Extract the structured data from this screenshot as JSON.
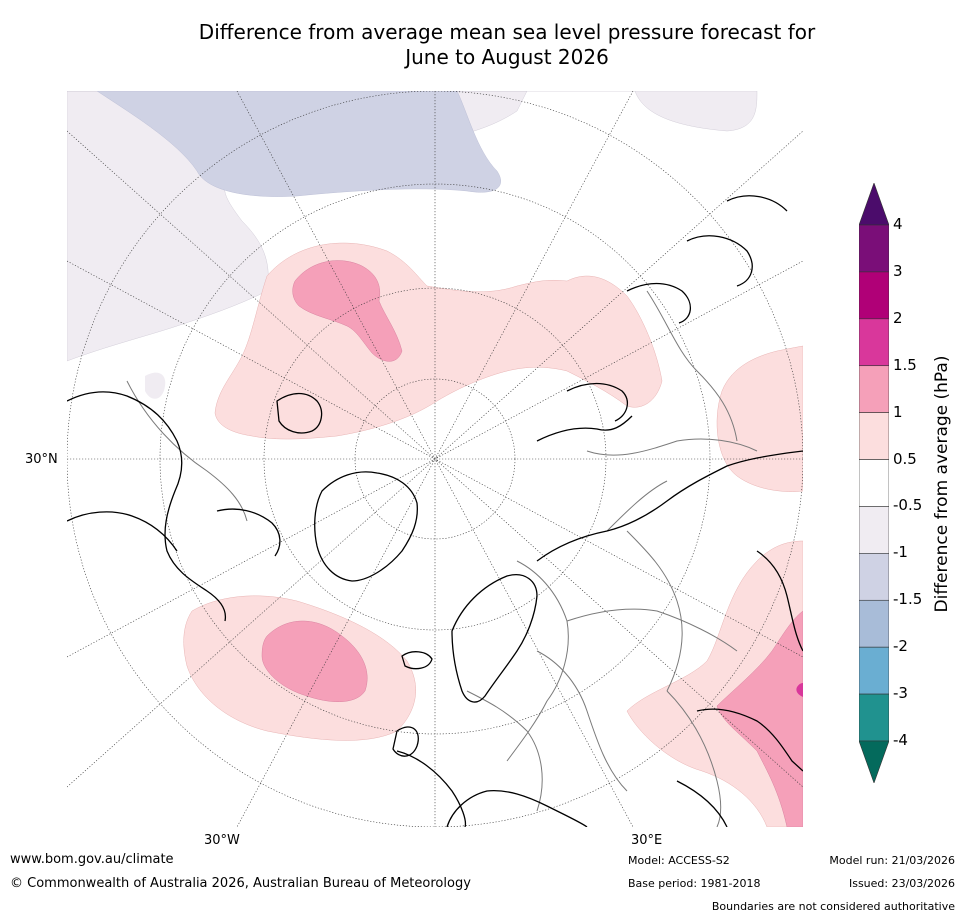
{
  "title_line1": "Difference from average mean sea level pressure forecast for",
  "title_line2": "June to August 2026",
  "map": {
    "projection": "polar-stereographic",
    "lat_label": "30°N",
    "lon_labels": [
      "30°W",
      "30°E"
    ]
  },
  "colorbar": {
    "title": "Difference from average (hPa)",
    "ticks": [
      "4",
      "3",
      "2",
      "1.5",
      "1",
      "0.5",
      "-0.5",
      "-1",
      "-1.5",
      "-2",
      "-3",
      "-4"
    ],
    "colors": [
      "#4b0c6b",
      "#7a0e78",
      "#b00077",
      "#d9379b",
      "#f5a0b9",
      "#fcdede",
      "#ffffff",
      "#f0ecf2",
      "#cfd2e4",
      "#a8bcd8",
      "#6aaed2",
      "#20928f",
      "#046a5c"
    ]
  },
  "footer": {
    "website": "www.bom.gov.au/climate",
    "copyright": "© Commonwealth of Australia 2026, Australian Bureau of Meteorology",
    "model": "Model: ACCESS-S2",
    "base_period": "Base period: 1981-2018",
    "model_run": "Model run: 21/03/2026",
    "issued": "Issued: 23/03/2026",
    "disclaimer": "Boundaries are not considered authoritative"
  }
}
